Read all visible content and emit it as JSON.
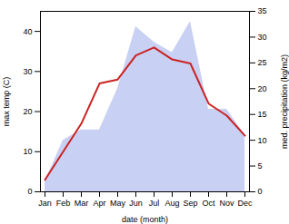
{
  "chart_data": {
    "type": "line",
    "xlabel": "date (month)",
    "ylabel": "max temp (C)",
    "y2label": "med. precipitation (kg/m2)",
    "categories": [
      "Jan",
      "Feb",
      "Mar",
      "Apr",
      "May",
      "Jun",
      "Jul",
      "Aug",
      "Sep",
      "Oct",
      "Nov",
      "Dec"
    ],
    "series": [
      {
        "type": "area",
        "color": "#c8d0f4",
        "axis": "y2",
        "values": [
          2,
          10,
          12,
          12,
          20,
          32,
          29,
          27,
          33,
          16,
          16,
          11
        ]
      },
      {
        "type": "line",
        "color": "#cc2222",
        "values": [
          3,
          10,
          17,
          27,
          28,
          34,
          36,
          33,
          32,
          22,
          19,
          14
        ]
      }
    ],
    "ylim": [
      0,
      45
    ],
    "yticks": [
      0,
      10,
      20,
      30,
      40
    ],
    "y2lim": [
      0,
      35
    ],
    "y2ticks": [
      0,
      5,
      10,
      15,
      20,
      25,
      30,
      35
    ],
    "grid": false
  }
}
